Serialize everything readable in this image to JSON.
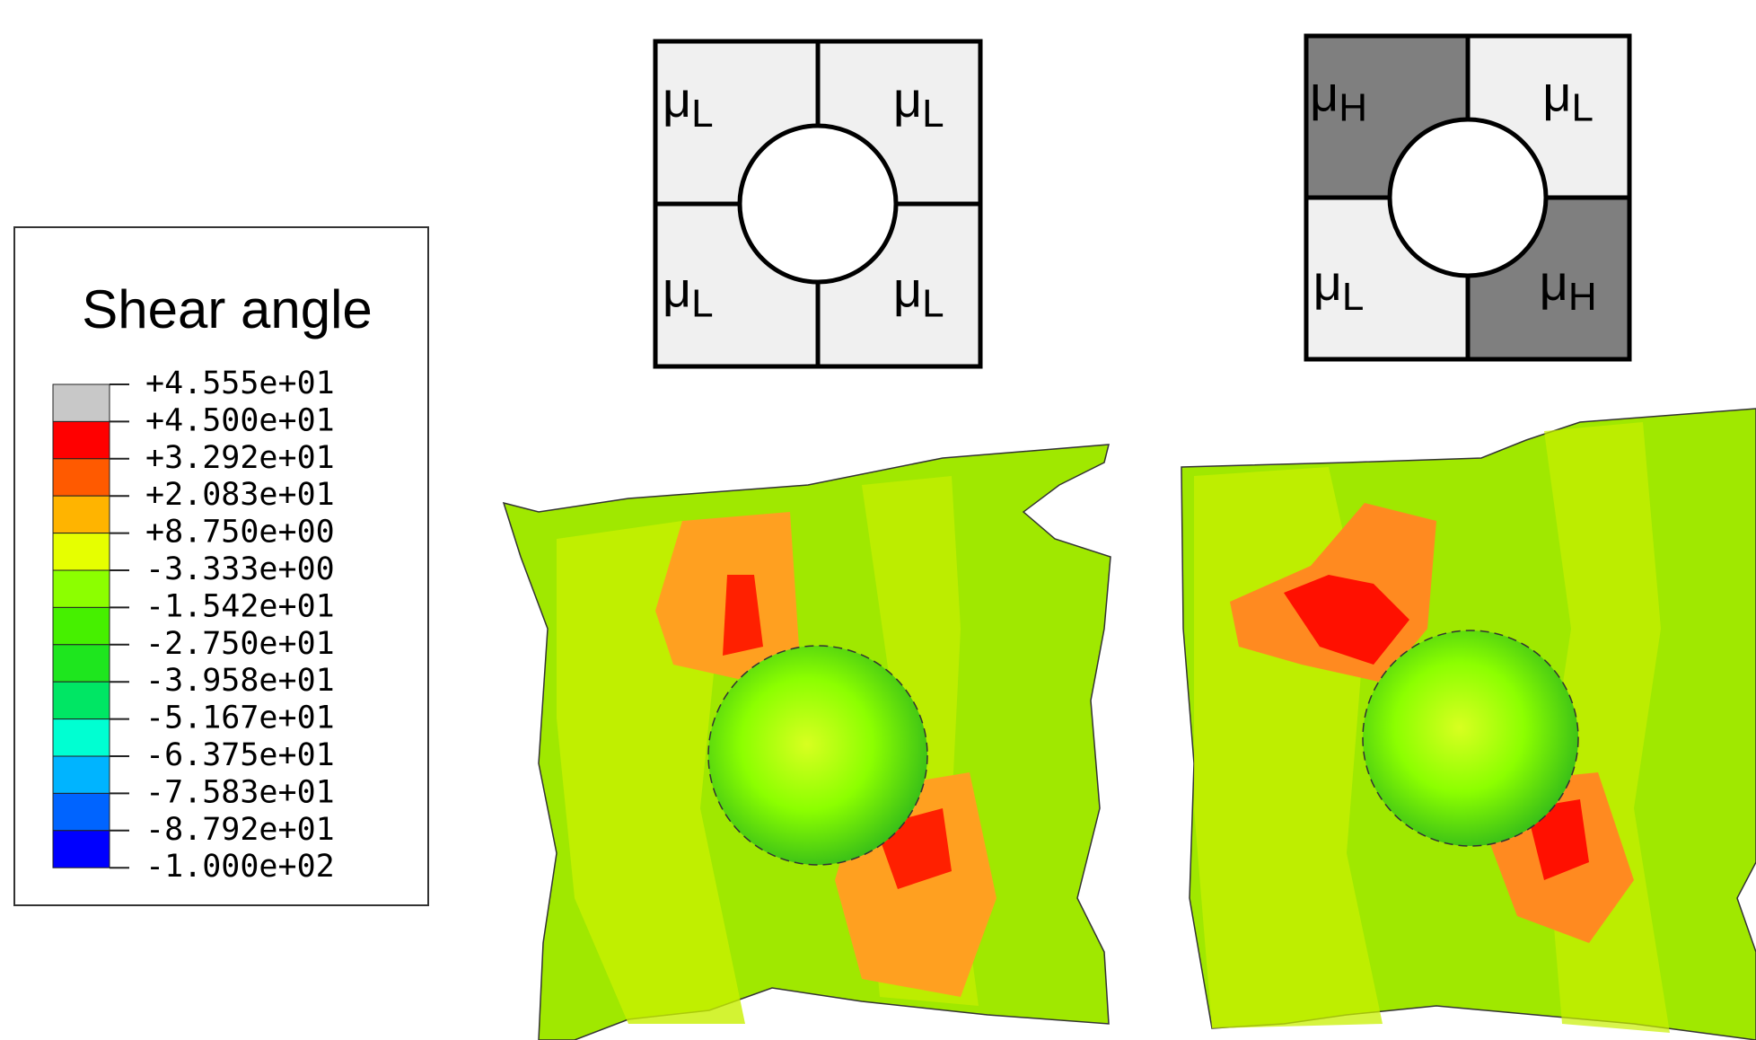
{
  "legend": {
    "title": "Shear angle",
    "labels": [
      "+4.555e+01",
      "+4.500e+01",
      "+3.292e+01",
      "+2.083e+01",
      "+8.750e+00",
      "-3.333e+00",
      "-1.542e+01",
      "-2.750e+01",
      "-3.958e+01",
      "-5.167e+01",
      "-6.375e+01",
      "-7.583e+01",
      "-8.792e+01",
      "-1.000e+02"
    ],
    "colors": [
      "#c8c8c8",
      "#ff0000",
      "#ff5a00",
      "#ffb400",
      "#e6ff00",
      "#8cff00",
      "#46f000",
      "#1ee61e",
      "#00e664",
      "#00ffd2",
      "#00b4ff",
      "#0064ff",
      "#0000ff"
    ]
  },
  "diagrams": [
    {
      "quadrants": [
        {
          "symbol": "μ",
          "sub": "L",
          "fill": "#f0f0f0"
        },
        {
          "symbol": "μ",
          "sub": "L",
          "fill": "#f0f0f0"
        },
        {
          "symbol": "μ",
          "sub": "L",
          "fill": "#f0f0f0"
        },
        {
          "symbol": "μ",
          "sub": "L",
          "fill": "#f0f0f0"
        }
      ]
    },
    {
      "quadrants": [
        {
          "symbol": "μ",
          "sub": "H",
          "fill": "#7f7f7f"
        },
        {
          "symbol": "μ",
          "sub": "L",
          "fill": "#f0f0f0"
        },
        {
          "symbol": "μ",
          "sub": "L",
          "fill": "#f0f0f0"
        },
        {
          "symbol": "μ",
          "sub": "H",
          "fill": "#7f7f7f"
        }
      ]
    }
  ]
}
